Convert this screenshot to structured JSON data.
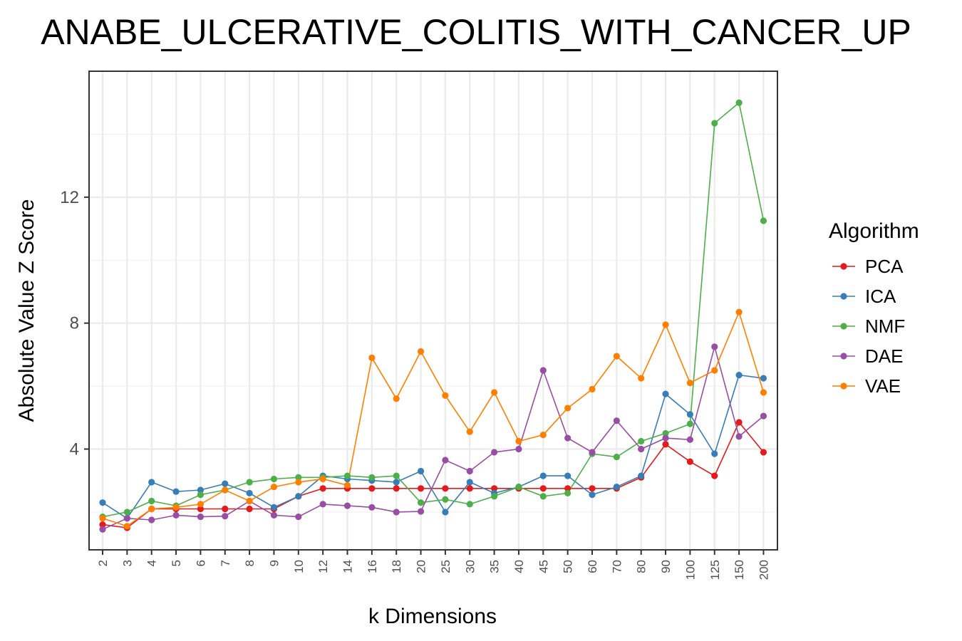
{
  "chart_data": {
    "type": "line",
    "title": "ANABE_ULCERATIVE_COLITIS_WITH_CANCER_UP",
    "xlabel": "k Dimensions",
    "ylabel": "Absolute Value Z Score",
    "categories": [
      "2",
      "3",
      "4",
      "5",
      "6",
      "7",
      "8",
      "9",
      "10",
      "12",
      "14",
      "16",
      "18",
      "20",
      "25",
      "30",
      "35",
      "40",
      "45",
      "50",
      "60",
      "70",
      "80",
      "90",
      "100",
      "125",
      "150",
      "200"
    ],
    "y_ticks": [
      4,
      8,
      12
    ],
    "ylim": [
      0.8,
      16.0
    ],
    "grid": true,
    "legend": {
      "title": "Algorithm",
      "position": "right"
    },
    "series": [
      {
        "name": "PCA",
        "color": "#E41A1C",
        "values": [
          1.6,
          1.5,
          2.1,
          2.1,
          2.1,
          2.1,
          2.1,
          2.1,
          2.5,
          2.75,
          2.75,
          2.75,
          2.75,
          2.75,
          2.75,
          2.75,
          2.75,
          2.75,
          2.75,
          2.75,
          2.75,
          2.75,
          3.1,
          4.15,
          3.6,
          3.15,
          4.85,
          3.9
        ]
      },
      {
        "name": "ICA",
        "color": "#377EB8",
        "values": [
          2.3,
          1.8,
          2.95,
          2.65,
          2.7,
          2.9,
          2.6,
          2.15,
          2.5,
          3.15,
          3.05,
          3.0,
          2.95,
          3.3,
          2.0,
          2.95,
          2.6,
          2.8,
          3.15,
          3.15,
          2.55,
          2.8,
          3.15,
          5.75,
          5.1,
          3.85,
          6.35,
          6.25
        ]
      },
      {
        "name": "NMF",
        "color": "#4DAF4A",
        "values": [
          1.85,
          2.0,
          2.35,
          2.2,
          2.55,
          2.7,
          2.95,
          3.05,
          3.1,
          3.1,
          3.15,
          3.1,
          3.15,
          2.3,
          2.4,
          2.25,
          2.5,
          2.8,
          2.5,
          2.6,
          3.85,
          3.75,
          4.25,
          4.5,
          4.8,
          14.35,
          15.0,
          11.25
        ]
      },
      {
        "name": "DAE",
        "color": "#984EA3",
        "values": [
          1.45,
          1.8,
          1.75,
          1.9,
          1.85,
          1.87,
          2.35,
          1.9,
          1.85,
          2.25,
          2.2,
          2.15,
          2.0,
          2.02,
          3.65,
          3.3,
          3.9,
          4.0,
          6.5,
          4.35,
          3.9,
          4.9,
          4.0,
          4.35,
          4.3,
          7.25,
          4.4,
          5.05
        ]
      },
      {
        "name": "VAE",
        "color": "#FF7F00",
        "values": [
          1.8,
          1.55,
          2.1,
          2.15,
          2.25,
          2.7,
          2.35,
          2.8,
          2.95,
          3.05,
          2.85,
          6.9,
          5.6,
          7.1,
          5.7,
          4.55,
          5.8,
          4.25,
          4.45,
          5.3,
          5.9,
          6.95,
          6.25,
          7.95,
          6.1,
          6.5,
          8.35,
          5.8
        ]
      }
    ]
  }
}
